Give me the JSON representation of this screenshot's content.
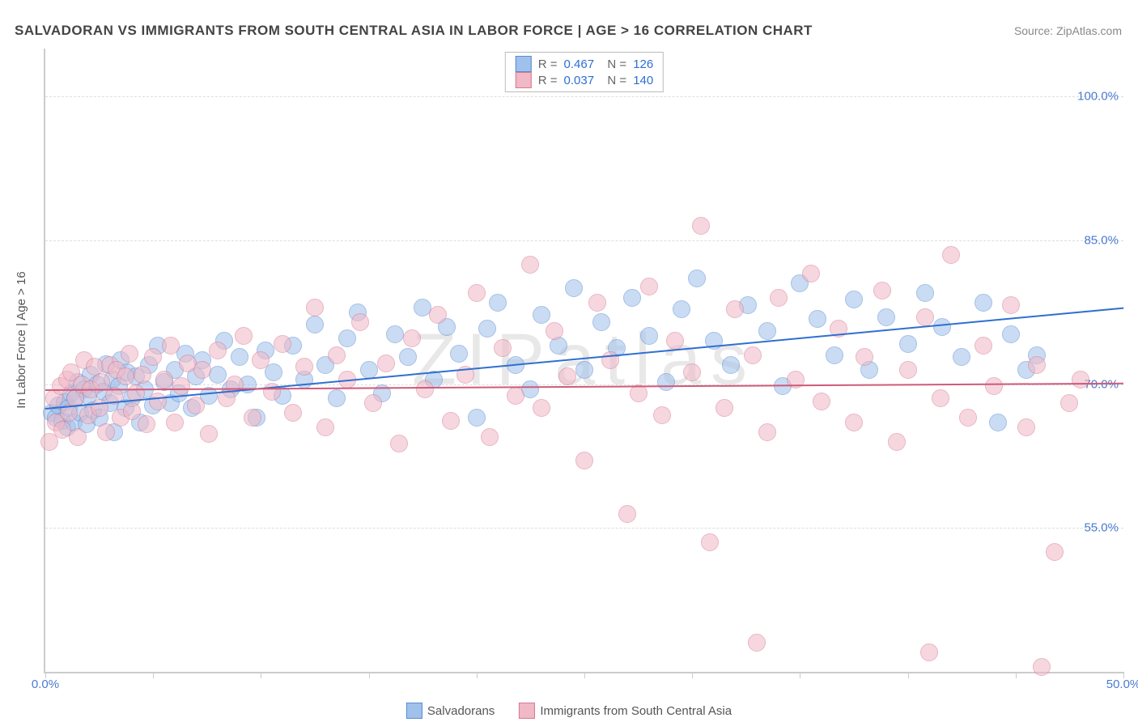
{
  "title": "SALVADORAN VS IMMIGRANTS FROM SOUTH CENTRAL ASIA IN LABOR FORCE | AGE > 16 CORRELATION CHART",
  "source": "Source: ZipAtlas.com",
  "yaxis_title": "In Labor Force | Age > 16",
  "watermark": "ZIPatlas",
  "chart": {
    "type": "scatter",
    "xlim": [
      0,
      50
    ],
    "ylim": [
      40,
      105
    ],
    "y_gridlines": [
      55,
      70,
      85,
      100
    ],
    "y_gridlabels": [
      "55.0%",
      "70.0%",
      "85.0%",
      "100.0%"
    ],
    "x_ticks": [
      0,
      5,
      10,
      15,
      20,
      25,
      30,
      35,
      40,
      45,
      50
    ],
    "x_labels": {
      "0": "0.0%",
      "50": "50.0%"
    },
    "background_color": "#ffffff",
    "grid_color": "#dddddd",
    "axis_color": "#cccccc",
    "label_color": "#4a7bd0",
    "point_radius": 10,
    "point_opacity": 0.55,
    "series": [
      {
        "id": "salvadorans",
        "label": "Salvadorans",
        "R": "0.467",
        "N": "126",
        "fill": "#9fc1ec",
        "stroke": "#5a8cd0",
        "trend_color": "#2f6fd0",
        "trend_y_at_x0": 67.5,
        "trend_y_at_x50": 78.0,
        "points": [
          [
            0.3,
            67
          ],
          [
            0.5,
            66.5
          ],
          [
            0.6,
            67.8
          ],
          [
            0.8,
            66.2
          ],
          [
            0.9,
            68.1
          ],
          [
            1.0,
            65.5
          ],
          [
            1.1,
            67.5
          ],
          [
            1.2,
            69.0
          ],
          [
            1.3,
            66.0
          ],
          [
            1.4,
            68.5
          ],
          [
            1.5,
            70.2
          ],
          [
            1.6,
            67.0
          ],
          [
            1.8,
            69.5
          ],
          [
            1.9,
            65.8
          ],
          [
            2.0,
            68.8
          ],
          [
            2.1,
            71.0
          ],
          [
            2.2,
            67.3
          ],
          [
            2.4,
            70.0
          ],
          [
            2.5,
            66.5
          ],
          [
            2.7,
            69.2
          ],
          [
            2.8,
            72.1
          ],
          [
            3.0,
            68.0
          ],
          [
            3.1,
            70.5
          ],
          [
            3.2,
            65.0
          ],
          [
            3.4,
            69.8
          ],
          [
            3.5,
            72.5
          ],
          [
            3.7,
            67.5
          ],
          [
            3.8,
            71.2
          ],
          [
            4.0,
            68.5
          ],
          [
            4.2,
            70.8
          ],
          [
            4.4,
            66.0
          ],
          [
            4.6,
            69.5
          ],
          [
            4.8,
            72.0
          ],
          [
            5.0,
            67.8
          ],
          [
            5.2,
            74.0
          ],
          [
            5.5,
            70.2
          ],
          [
            5.8,
            68.0
          ],
          [
            6.0,
            71.5
          ],
          [
            6.2,
            69.0
          ],
          [
            6.5,
            73.2
          ],
          [
            6.8,
            67.5
          ],
          [
            7.0,
            70.8
          ],
          [
            7.3,
            72.5
          ],
          [
            7.6,
            68.8
          ],
          [
            8.0,
            71.0
          ],
          [
            8.3,
            74.5
          ],
          [
            8.6,
            69.5
          ],
          [
            9.0,
            72.8
          ],
          [
            9.4,
            70.0
          ],
          [
            9.8,
            66.5
          ],
          [
            10.2,
            73.5
          ],
          [
            10.6,
            71.2
          ],
          [
            11.0,
            68.8
          ],
          [
            11.5,
            74.0
          ],
          [
            12.0,
            70.5
          ],
          [
            12.5,
            76.2
          ],
          [
            13.0,
            72.0
          ],
          [
            13.5,
            68.5
          ],
          [
            14.0,
            74.8
          ],
          [
            14.5,
            77.5
          ],
          [
            15.0,
            71.5
          ],
          [
            15.6,
            69.0
          ],
          [
            16.2,
            75.2
          ],
          [
            16.8,
            72.8
          ],
          [
            17.5,
            78.0
          ],
          [
            18.0,
            70.5
          ],
          [
            18.6,
            76.0
          ],
          [
            19.2,
            73.2
          ],
          [
            20.0,
            66.5
          ],
          [
            20.5,
            75.8
          ],
          [
            21.0,
            78.5
          ],
          [
            21.8,
            72.0
          ],
          [
            22.5,
            69.5
          ],
          [
            23.0,
            77.2
          ],
          [
            23.8,
            74.0
          ],
          [
            24.5,
            80.0
          ],
          [
            25.0,
            71.5
          ],
          [
            25.8,
            76.5
          ],
          [
            26.5,
            73.8
          ],
          [
            27.2,
            79.0
          ],
          [
            28.0,
            75.0
          ],
          [
            28.8,
            70.2
          ],
          [
            29.5,
            77.8
          ],
          [
            30.2,
            81.0
          ],
          [
            31.0,
            74.5
          ],
          [
            31.8,
            72.0
          ],
          [
            32.6,
            78.2
          ],
          [
            33.5,
            75.5
          ],
          [
            34.2,
            69.8
          ],
          [
            35.0,
            80.5
          ],
          [
            35.8,
            76.8
          ],
          [
            36.6,
            73.0
          ],
          [
            37.5,
            78.8
          ],
          [
            38.2,
            71.5
          ],
          [
            39.0,
            77.0
          ],
          [
            40.0,
            74.2
          ],
          [
            40.8,
            79.5
          ],
          [
            41.6,
            76.0
          ],
          [
            42.5,
            72.8
          ],
          [
            43.5,
            78.5
          ],
          [
            44.2,
            66.0
          ],
          [
            44.8,
            75.2
          ],
          [
            45.5,
            71.5
          ],
          [
            46.0,
            73.0
          ]
        ]
      },
      {
        "id": "immigrants_sca",
        "label": "Immigrants from South Central Asia",
        "R": "0.037",
        "N": "140",
        "fill": "#f1b8c6",
        "stroke": "#d67a92",
        "trend_color": "#d05a7a",
        "trend_y_at_x0": 69.5,
        "trend_y_at_x50": 70.2,
        "points": [
          [
            0.2,
            64.0
          ],
          [
            0.4,
            68.5
          ],
          [
            0.5,
            66.0
          ],
          [
            0.7,
            69.8
          ],
          [
            0.8,
            65.2
          ],
          [
            1.0,
            70.5
          ],
          [
            1.1,
            67.0
          ],
          [
            1.2,
            71.2
          ],
          [
            1.4,
            68.5
          ],
          [
            1.5,
            64.5
          ],
          [
            1.7,
            70.0
          ],
          [
            1.8,
            72.5
          ],
          [
            2.0,
            66.8
          ],
          [
            2.1,
            69.5
          ],
          [
            2.3,
            71.8
          ],
          [
            2.5,
            67.5
          ],
          [
            2.6,
            70.2
          ],
          [
            2.8,
            65.0
          ],
          [
            3.0,
            72.0
          ],
          [
            3.2,
            68.8
          ],
          [
            3.3,
            71.5
          ],
          [
            3.5,
            66.5
          ],
          [
            3.7,
            70.8
          ],
          [
            3.9,
            73.2
          ],
          [
            4.0,
            67.2
          ],
          [
            4.2,
            69.0
          ],
          [
            4.5,
            71.0
          ],
          [
            4.7,
            65.8
          ],
          [
            5.0,
            72.8
          ],
          [
            5.2,
            68.2
          ],
          [
            5.5,
            70.5
          ],
          [
            5.8,
            74.0
          ],
          [
            6.0,
            66.0
          ],
          [
            6.3,
            69.8
          ],
          [
            6.6,
            72.2
          ],
          [
            7.0,
            67.8
          ],
          [
            7.3,
            71.5
          ],
          [
            7.6,
            64.8
          ],
          [
            8.0,
            73.5
          ],
          [
            8.4,
            68.5
          ],
          [
            8.8,
            70.0
          ],
          [
            9.2,
            75.0
          ],
          [
            9.6,
            66.5
          ],
          [
            10.0,
            72.5
          ],
          [
            10.5,
            69.2
          ],
          [
            11.0,
            74.2
          ],
          [
            11.5,
            67.0
          ],
          [
            12.0,
            71.8
          ],
          [
            12.5,
            78.0
          ],
          [
            13.0,
            65.5
          ],
          [
            13.5,
            73.0
          ],
          [
            14.0,
            70.5
          ],
          [
            14.6,
            76.5
          ],
          [
            15.2,
            68.0
          ],
          [
            15.8,
            72.2
          ],
          [
            16.4,
            63.8
          ],
          [
            17.0,
            74.8
          ],
          [
            17.6,
            69.5
          ],
          [
            18.2,
            77.2
          ],
          [
            18.8,
            66.2
          ],
          [
            19.5,
            71.0
          ],
          [
            20.0,
            79.5
          ],
          [
            20.6,
            64.5
          ],
          [
            21.2,
            73.8
          ],
          [
            21.8,
            68.8
          ],
          [
            22.5,
            82.5
          ],
          [
            23.0,
            67.5
          ],
          [
            23.6,
            75.5
          ],
          [
            24.2,
            70.8
          ],
          [
            25.0,
            62.0
          ],
          [
            25.6,
            78.5
          ],
          [
            26.2,
            72.5
          ],
          [
            27.0,
            56.5
          ],
          [
            27.5,
            69.0
          ],
          [
            28.0,
            80.2
          ],
          [
            28.6,
            66.8
          ],
          [
            29.2,
            74.5
          ],
          [
            30.0,
            71.2
          ],
          [
            30.4,
            86.5
          ],
          [
            30.8,
            53.5
          ],
          [
            31.5,
            67.5
          ],
          [
            32.0,
            77.8
          ],
          [
            32.8,
            73.0
          ],
          [
            33.5,
            65.0
          ],
          [
            34.0,
            79.0
          ],
          [
            34.8,
            70.5
          ],
          [
            35.5,
            81.5
          ],
          [
            36.0,
            68.2
          ],
          [
            36.8,
            75.8
          ],
          [
            37.5,
            66.0
          ],
          [
            38.0,
            72.8
          ],
          [
            38.8,
            79.8
          ],
          [
            39.5,
            64.0
          ],
          [
            40.0,
            71.5
          ],
          [
            40.8,
            77.0
          ],
          [
            41.5,
            68.5
          ],
          [
            42.0,
            83.5
          ],
          [
            42.8,
            66.5
          ],
          [
            43.5,
            74.0
          ],
          [
            44.0,
            69.8
          ],
          [
            44.8,
            78.2
          ],
          [
            45.5,
            65.5
          ],
          [
            46.0,
            72.0
          ],
          [
            46.8,
            52.5
          ],
          [
            47.5,
            68.0
          ],
          [
            48.0,
            70.5
          ],
          [
            46.2,
            40.5
          ],
          [
            33.0,
            43.0
          ],
          [
            41.0,
            42.0
          ]
        ]
      }
    ]
  },
  "legend_bottom": [
    {
      "label": "Salvadorans",
      "fill": "#9fc1ec",
      "stroke": "#5a8cd0"
    },
    {
      "label": "Immigrants from South Central Asia",
      "fill": "#f1b8c6",
      "stroke": "#d67a92"
    }
  ]
}
